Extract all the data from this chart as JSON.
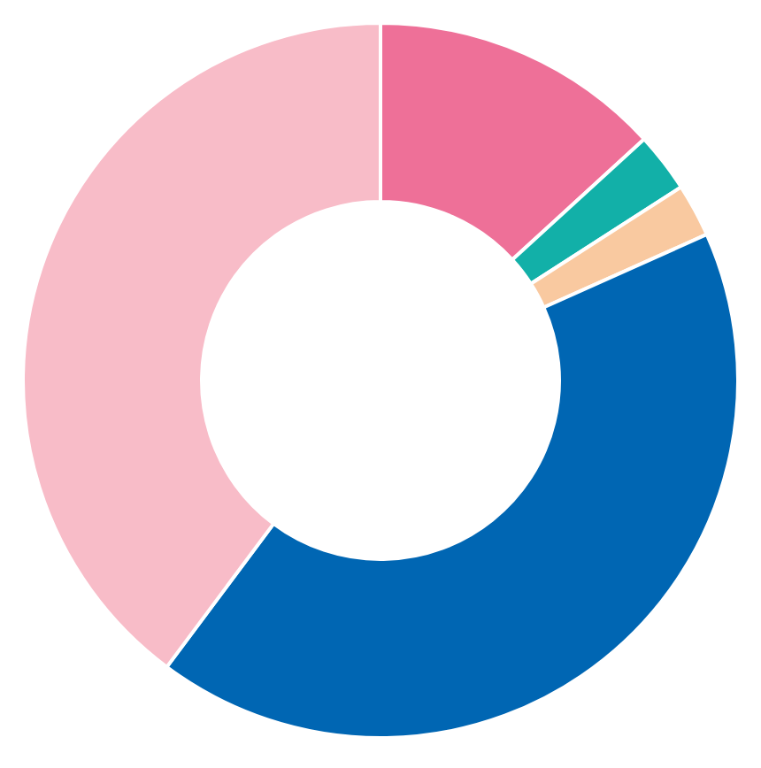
{
  "chart_data": {
    "type": "donut",
    "categories": [
      null,
      null,
      null,
      null,
      null
    ],
    "values": [
      13.2,
      2.7,
      2.4,
      41.9,
      39.8
    ],
    "colors": [
      "#ee7098",
      "#12b0a8",
      "#f9c9a0",
      "#0066b3",
      "#f8bcc8"
    ],
    "legend": false
  }
}
